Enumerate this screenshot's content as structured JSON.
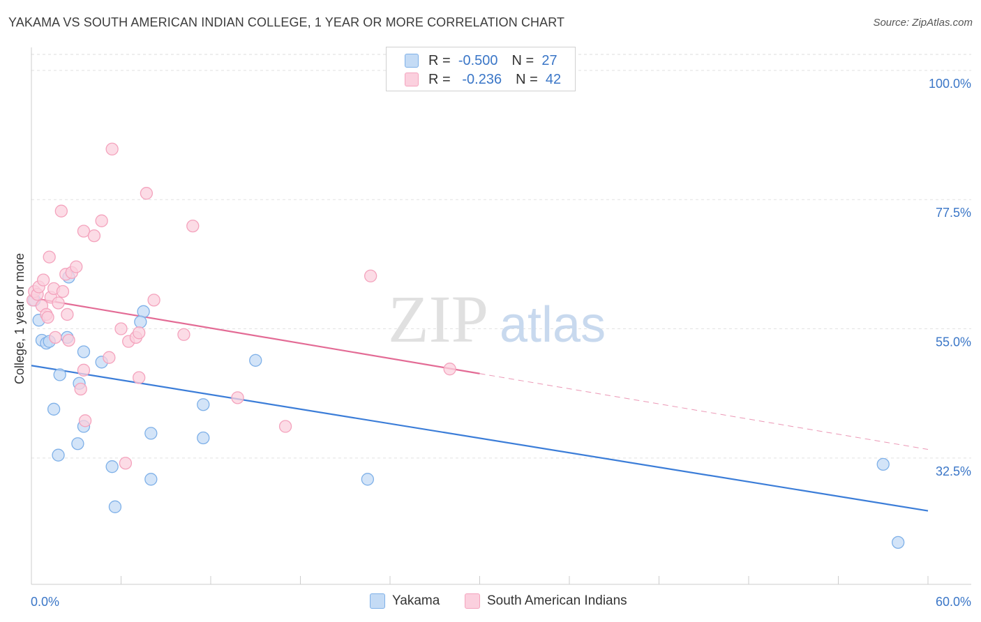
{
  "title": "YAKAMA VS SOUTH AMERICAN INDIAN COLLEGE, 1 YEAR OR MORE CORRELATION CHART",
  "source": "Source: ZipAtlas.com",
  "watermark": {
    "zip": "ZIP",
    "atlas": "atlas"
  },
  "legend": {
    "r_label": "R =",
    "n_label": "N =",
    "rows": [
      {
        "name": "Yakama",
        "r": "-0.500",
        "n": "27",
        "color": "#7eb0e8",
        "fill": "#c4dbf5"
      },
      {
        "name": "South American Indians",
        "r": "-0.236",
        "n": "42",
        "color": "#f4a3bd",
        "fill": "#fbd0de"
      }
    ]
  },
  "chart_data": {
    "type": "scatter",
    "title": "YAKAMA VS SOUTH AMERICAN INDIAN COLLEGE, 1 YEAR OR MORE CORRELATION CHART",
    "xlabel": "",
    "ylabel": "College, 1 year or more",
    "xlim": [
      0,
      60
    ],
    "ylim": [
      10.5,
      104
    ],
    "x_tick_labels": [
      "0.0%",
      "60.0%"
    ],
    "y_ticks": [
      32.5,
      55.0,
      77.5,
      100.0
    ],
    "y_tick_labels": [
      "32.5%",
      "55.0%",
      "77.5%",
      "100.0%"
    ],
    "series": [
      {
        "name": "Yakama",
        "color": "#3b7dd8",
        "fill": "#c4dbf5",
        "stroke": "#7eb0e8",
        "points": [
          [
            0.2,
            60.0
          ],
          [
            0.5,
            56.5
          ],
          [
            0.7,
            53.0
          ],
          [
            1.0,
            52.5
          ],
          [
            1.2,
            52.8
          ],
          [
            2.5,
            64.0
          ],
          [
            2.4,
            53.5
          ],
          [
            3.5,
            51.0
          ],
          [
            4.7,
            49.2
          ],
          [
            7.5,
            58.0
          ],
          [
            7.3,
            56.2
          ],
          [
            1.9,
            47.0
          ],
          [
            3.2,
            45.5
          ],
          [
            1.5,
            41.0
          ],
          [
            3.5,
            38.0
          ],
          [
            5.4,
            31.0
          ],
          [
            3.1,
            35.0
          ],
          [
            1.8,
            33.0
          ],
          [
            8.0,
            36.8
          ],
          [
            11.5,
            36.0
          ],
          [
            11.5,
            41.8
          ],
          [
            15.0,
            49.5
          ],
          [
            8.0,
            28.8
          ],
          [
            5.6,
            24.0
          ],
          [
            22.5,
            28.8
          ],
          [
            57.0,
            31.4
          ],
          [
            58.0,
            17.8
          ]
        ],
        "trend": {
          "x1": 0,
          "y1": 48.6,
          "x2": 60,
          "y2": 23.3,
          "dashed_from": null
        }
      },
      {
        "name": "South American Indians",
        "color": "#e36b95",
        "fill": "#fbd0de",
        "stroke": "#f4a3bd",
        "points": [
          [
            0.1,
            60.0
          ],
          [
            0.2,
            61.5
          ],
          [
            0.4,
            61.0
          ],
          [
            0.5,
            62.3
          ],
          [
            0.7,
            59.0
          ],
          [
            0.8,
            63.5
          ],
          [
            1.0,
            57.5
          ],
          [
            1.1,
            57.0
          ],
          [
            1.2,
            67.5
          ],
          [
            1.3,
            60.5
          ],
          [
            1.5,
            62.0
          ],
          [
            1.6,
            53.5
          ],
          [
            1.8,
            59.5
          ],
          [
            2.0,
            75.5
          ],
          [
            2.1,
            61.5
          ],
          [
            2.3,
            64.5
          ],
          [
            2.4,
            57.5
          ],
          [
            2.5,
            53.0
          ],
          [
            2.7,
            64.8
          ],
          [
            3.0,
            65.8
          ],
          [
            3.5,
            72.0
          ],
          [
            3.5,
            47.8
          ],
          [
            3.6,
            39.0
          ],
          [
            3.3,
            44.5
          ],
          [
            4.2,
            71.2
          ],
          [
            4.7,
            73.8
          ],
          [
            5.2,
            50.0
          ],
          [
            5.4,
            86.3
          ],
          [
            6.0,
            55.0
          ],
          [
            6.5,
            52.8
          ],
          [
            6.3,
            31.6
          ],
          [
            7.0,
            53.5
          ],
          [
            7.2,
            54.3
          ],
          [
            7.2,
            46.5
          ],
          [
            7.7,
            78.6
          ],
          [
            8.2,
            60.0
          ],
          [
            10.2,
            54.0
          ],
          [
            10.8,
            72.9
          ],
          [
            13.8,
            43.0
          ],
          [
            17.0,
            38.0
          ],
          [
            22.7,
            64.2
          ],
          [
            28.0,
            48.0
          ]
        ],
        "trend": {
          "x1": 0,
          "y1": 60.4,
          "x2": 60,
          "y2": 34.0,
          "dashed_from": 30
        }
      }
    ]
  }
}
